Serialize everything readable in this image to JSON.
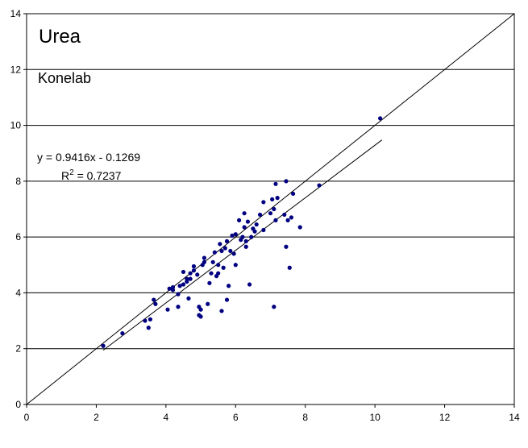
{
  "chart_data": {
    "type": "scatter",
    "title": "Urea",
    "subtitle": "Konelab",
    "equation": "y = 0.9416x - 0.1269",
    "r2_prefix": "R",
    "r2_exp": "2",
    "r2_value": " = 0.7237",
    "xlim": [
      0,
      14
    ],
    "ylim": [
      0,
      14
    ],
    "xticks": [
      "0",
      "2",
      "4",
      "6",
      "8",
      "10",
      "12",
      "14"
    ],
    "yticks": [
      "0",
      "2",
      "4",
      "6",
      "8",
      "10",
      "12",
      "14"
    ],
    "grid": "horizontal",
    "identity_line": {
      "x": [
        0,
        14
      ],
      "y": [
        0,
        14
      ]
    },
    "trendline": {
      "slope": 0.9416,
      "intercept": -0.1269,
      "x_range": [
        2.2,
        10.2
      ]
    },
    "colors": {
      "points": "#000080",
      "lines": "#000000",
      "grid": "#000000",
      "background": "#ffffff"
    },
    "points": [
      [
        2.2,
        2.1
      ],
      [
        2.75,
        2.55
      ],
      [
        3.4,
        3.0
      ],
      [
        3.55,
        3.05
      ],
      [
        3.5,
        2.75
      ],
      [
        3.65,
        3.75
      ],
      [
        3.7,
        3.6
      ],
      [
        4.05,
        3.4
      ],
      [
        4.1,
        4.15
      ],
      [
        4.2,
        4.1
      ],
      [
        4.2,
        4.2
      ],
      [
        4.35,
        3.5
      ],
      [
        4.35,
        3.95
      ],
      [
        4.4,
        4.25
      ],
      [
        4.5,
        4.3
      ],
      [
        4.5,
        4.75
      ],
      [
        4.6,
        4.5
      ],
      [
        4.6,
        4.4
      ],
      [
        4.65,
        3.8
      ],
      [
        4.7,
        4.5
      ],
      [
        4.7,
        4.7
      ],
      [
        4.8,
        4.8
      ],
      [
        4.8,
        4.95
      ],
      [
        4.9,
        4.65
      ],
      [
        4.95,
        3.5
      ],
      [
        4.95,
        3.2
      ],
      [
        5.0,
        3.15
      ],
      [
        5.0,
        3.4
      ],
      [
        5.05,
        5.0
      ],
      [
        5.1,
        5.1
      ],
      [
        5.1,
        5.25
      ],
      [
        5.2,
        3.6
      ],
      [
        5.25,
        4.35
      ],
      [
        5.3,
        4.7
      ],
      [
        5.35,
        5.1
      ],
      [
        5.4,
        5.45
      ],
      [
        5.45,
        4.6
      ],
      [
        5.5,
        4.7
      ],
      [
        5.5,
        5.0
      ],
      [
        5.55,
        5.75
      ],
      [
        5.6,
        5.5
      ],
      [
        5.6,
        3.35
      ],
      [
        5.65,
        4.9
      ],
      [
        5.7,
        5.6
      ],
      [
        5.75,
        3.75
      ],
      [
        5.75,
        5.85
      ],
      [
        5.8,
        4.25
      ],
      [
        5.85,
        5.5
      ],
      [
        5.9,
        6.05
      ],
      [
        5.95,
        5.4
      ],
      [
        6.0,
        5.0
      ],
      [
        6.0,
        6.1
      ],
      [
        6.1,
        6.6
      ],
      [
        6.15,
        5.9
      ],
      [
        6.2,
        6.0
      ],
      [
        6.25,
        6.35
      ],
      [
        6.25,
        6.85
      ],
      [
        6.3,
        5.85
      ],
      [
        6.3,
        5.65
      ],
      [
        6.35,
        6.55
      ],
      [
        6.4,
        4.3
      ],
      [
        6.45,
        6.0
      ],
      [
        6.5,
        6.3
      ],
      [
        6.55,
        6.2
      ],
      [
        6.6,
        6.45
      ],
      [
        6.7,
        6.8
      ],
      [
        6.8,
        6.25
      ],
      [
        6.8,
        7.25
      ],
      [
        7.0,
        6.85
      ],
      [
        7.05,
        7.35
      ],
      [
        7.1,
        7.0
      ],
      [
        7.1,
        3.5
      ],
      [
        7.15,
        7.9
      ],
      [
        7.15,
        6.6
      ],
      [
        7.2,
        7.4
      ],
      [
        7.4,
        6.8
      ],
      [
        7.45,
        5.65
      ],
      [
        7.45,
        8.0
      ],
      [
        7.5,
        6.6
      ],
      [
        7.55,
        4.9
      ],
      [
        7.6,
        6.7
      ],
      [
        7.65,
        7.55
      ],
      [
        7.85,
        6.35
      ],
      [
        8.4,
        7.85
      ],
      [
        10.15,
        10.25
      ]
    ]
  }
}
